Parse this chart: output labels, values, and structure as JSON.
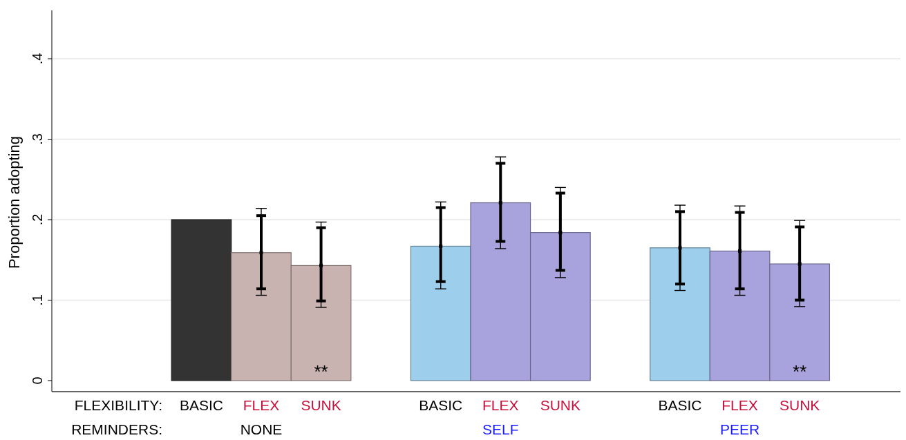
{
  "chart_data": {
    "type": "bar",
    "ylabel": "Proportion adopting",
    "categories": [
      null,
      null,
      "BASIC",
      "FLEX",
      "SUNK",
      null,
      "BASIC",
      "FLEX",
      "SUNK",
      null,
      "BASIC",
      "FLEX",
      "SUNK",
      null
    ],
    "series": [
      {
        "value_labels": [
          null,
          null,
          null,
          null,
          "**",
          null,
          null,
          null,
          null,
          null,
          null,
          null,
          "**",
          null
        ],
        "colors": [
          null,
          null,
          "#333333",
          "#c9b3b0",
          "#c9b3b0",
          null,
          "#9dcfec",
          "#a8a3dc",
          "#a8a3dc",
          null,
          "#9dcfec",
          "#a8a3dc",
          "#a8a3dc",
          null
        ],
        "values": [
          null,
          null,
          0.2,
          0.159,
          0.143,
          null,
          0.167,
          0.221,
          0.184,
          null,
          0.165,
          0.161,
          0.145,
          null
        ],
        "errors": [
          null,
          null,
          null,
          [
            0.106,
            0.214
          ],
          [
            0.091,
            0.197
          ],
          null,
          [
            0.114,
            0.222
          ],
          [
            0.164,
            0.278
          ],
          [
            0.128,
            0.24
          ],
          null,
          [
            0.112,
            0.218
          ],
          [
            0.106,
            0.217
          ],
          [
            0.092,
            0.199
          ],
          null
        ]
      },
      {
        "type": "scatter",
        "marker": "square",
        "color": "#000000",
        "values": [
          null,
          null,
          null,
          0.159,
          0.143,
          null,
          0.167,
          0.221,
          0.184,
          null,
          0.165,
          0.161,
          0.145,
          null
        ],
        "errors": [
          null,
          null,
          null,
          [
            0.114,
            0.205
          ],
          [
            0.099,
            0.19
          ],
          null,
          [
            0.123,
            0.215
          ],
          [
            0.173,
            0.27
          ],
          [
            0.137,
            0.233
          ],
          null,
          [
            0.12,
            0.21
          ],
          [
            0.114,
            0.209
          ],
          [
            0.1,
            0.191
          ],
          null
        ]
      }
    ],
    "ylim": [
      0,
      0.46
    ],
    "yticks": [
      0,
      {
        "value": 0.1,
        "label": ".1"
      },
      {
        "value": 0.2,
        "label": ".2"
      },
      {
        "value": 0.3,
        "label": ".3"
      },
      {
        "value": 0.4,
        "label": ".4"
      }
    ],
    "grid": "y",
    "annotations": [
      "FLEXIBILITY:",
      "REMINDERS:",
      "NONE",
      "SELF",
      "PEER"
    ]
  }
}
